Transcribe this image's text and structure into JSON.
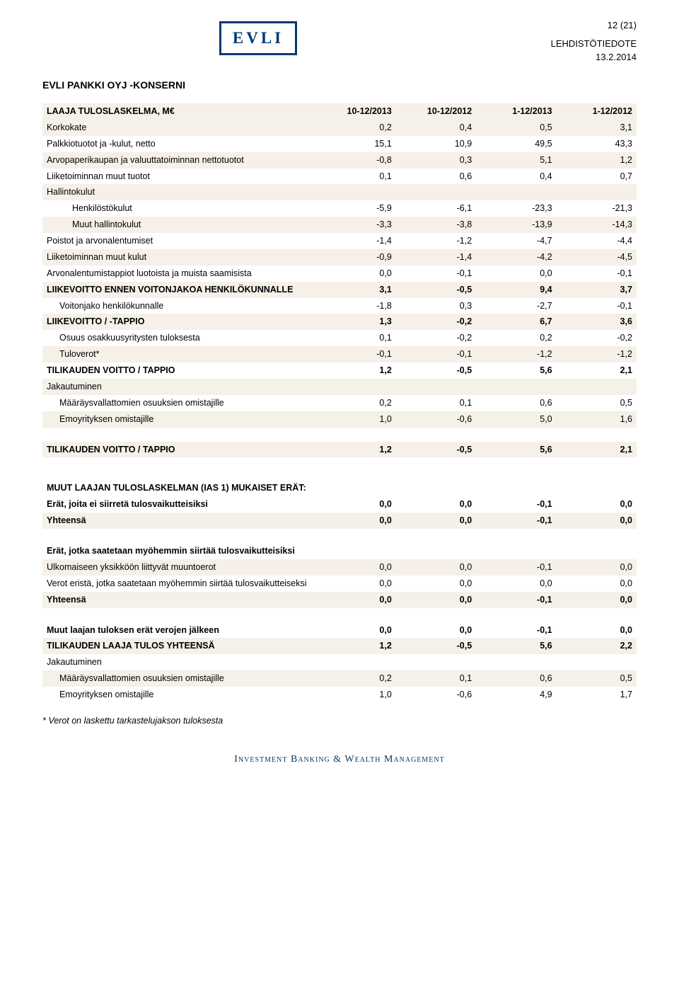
{
  "page_number": "12 (21)",
  "logo": "EVLI",
  "header": "LEHDISTÖTIEDOTE",
  "date": "13.2.2014",
  "group_title": "EVLI PANKKI OYJ -KONSERNI",
  "columns": [
    "LAAJA TULOSLASKELMA, M€",
    "10-12/2013",
    "10-12/2012",
    "1-12/2013",
    "1-12/2012"
  ],
  "main_rows": [
    {
      "label": "Korkokate",
      "v": [
        "0,2",
        "0,4",
        "0,5",
        "3,1"
      ],
      "band": true
    },
    {
      "label": "Palkkiotuotot ja -kulut, netto",
      "v": [
        "15,1",
        "10,9",
        "49,5",
        "43,3"
      ]
    },
    {
      "label": "Arvopaperikaupan ja valuuttatoiminnan nettotuotot",
      "v": [
        "-0,8",
        "0,3",
        "5,1",
        "1,2"
      ],
      "band": true
    },
    {
      "label": "Liiketoiminnan muut tuotot",
      "v": [
        "0,1",
        "0,6",
        "0,4",
        "0,7"
      ]
    },
    {
      "label": "Hallintokulut",
      "v": [
        "",
        "",
        "",
        ""
      ],
      "band": true
    },
    {
      "label": "Henkilöstökulut",
      "v": [
        "-5,9",
        "-6,1",
        "-23,3",
        "-21,3"
      ],
      "indent": 2
    },
    {
      "label": "Muut hallintokulut",
      "v": [
        "-3,3",
        "-3,8",
        "-13,9",
        "-14,3"
      ],
      "indent": 2,
      "band": true
    },
    {
      "label": "Poistot ja arvonalentumiset",
      "v": [
        "-1,4",
        "-1,2",
        "-4,7",
        "-4,4"
      ]
    },
    {
      "label": "Liiketoiminnan muut kulut",
      "v": [
        "-0,9",
        "-1,4",
        "-4,2",
        "-4,5"
      ],
      "band": true
    },
    {
      "label": "Arvonalentumistappiot luotoista ja muista saamisista",
      "v": [
        "0,0",
        "-0,1",
        "0,0",
        "-0,1"
      ]
    },
    {
      "label": "LIIKEVOITTO ENNEN VOITONJAKOA HENKILÖKUNNALLE",
      "v": [
        "3,1",
        "-0,5",
        "9,4",
        "3,7"
      ],
      "bold": true,
      "band": true
    },
    {
      "label": "Voitonjako henkilökunnalle",
      "v": [
        "-1,8",
        "0,3",
        "-2,7",
        "-0,1"
      ],
      "indent": 1
    },
    {
      "label": "LIIKEVOITTO / -TAPPIO",
      "v": [
        "1,3",
        "-0,2",
        "6,7",
        "3,6"
      ],
      "bold": true,
      "band": true
    },
    {
      "label": "Osuus osakkuusyritysten tuloksesta",
      "v": [
        "0,1",
        "-0,2",
        "0,2",
        "-0,2"
      ],
      "indent": 1
    },
    {
      "label": "Tuloverot*",
      "v": [
        "-0,1",
        "-0,1",
        "-1,2",
        "-1,2"
      ],
      "indent": 1,
      "band": true
    },
    {
      "label": "TILIKAUDEN VOITTO / TAPPIO",
      "v": [
        "1,2",
        "-0,5",
        "5,6",
        "2,1"
      ],
      "bold": true
    },
    {
      "label": "Jakautuminen",
      "v": [
        "",
        "",
        "",
        ""
      ],
      "band": true
    },
    {
      "label": "Määräysvallattomien osuuksien omistajille",
      "v": [
        "0,2",
        "0,1",
        "0,6",
        "0,5"
      ],
      "indent": 1
    },
    {
      "label": "Emoyrityksen omistajille",
      "v": [
        "1,0",
        "-0,6",
        "5,0",
        "1,6"
      ],
      "indent": 1,
      "band": true
    }
  ],
  "summary_row": {
    "label": "TILIKAUDEN VOITTO / TAPPIO",
    "v": [
      "1,2",
      "-0,5",
      "5,6",
      "2,1"
    ],
    "bold": true,
    "band": true
  },
  "oci_title": "MUUT LAAJAN TULOSLASKELMAN (IAS 1) MUKAISET ERÄT:",
  "oci_block1": [
    {
      "label": "Erät, joita ei siirretä tulosvaikutteisiksi",
      "v": [
        "0,0",
        "0,0",
        "-0,1",
        "0,0"
      ],
      "bold": true
    },
    {
      "label": "Yhteensä",
      "v": [
        "0,0",
        "0,0",
        "-0,1",
        "0,0"
      ],
      "bold": true,
      "band": true
    }
  ],
  "oci_block2_title": "Erät, jotka saatetaan myöhemmin siirtää tulosvaikutteisiksi",
  "oci_block2": [
    {
      "label": "Ulkomaiseen yksikköön liittyvät muuntoerot",
      "v": [
        "0,0",
        "0,0",
        "-0,1",
        "0,0"
      ],
      "band": true
    },
    {
      "label": "Verot eristä, jotka saatetaan myöhemmin siirtää tulosvaikutteiseksi",
      "v": [
        "0,0",
        "0,0",
        "0,0",
        "0,0"
      ]
    },
    {
      "label": "Yhteensä",
      "v": [
        "0,0",
        "0,0",
        "-0,1",
        "0,0"
      ],
      "bold": true,
      "band": true
    }
  ],
  "oci_block3": [
    {
      "label": "Muut laajan tuloksen erät verojen jälkeen",
      "v": [
        "0,0",
        "0,0",
        "-0,1",
        "0,0"
      ],
      "bold": true
    },
    {
      "label": "TILIKAUDEN LAAJA TULOS YHTEENSÄ",
      "v": [
        "1,2",
        "-0,5",
        "5,6",
        "2,2"
      ],
      "bold": true,
      "band": true
    },
    {
      "label": "Jakautuminen",
      "v": [
        "",
        "",
        "",
        ""
      ]
    },
    {
      "label": "Määräysvallattomien osuuksien omistajille",
      "v": [
        "0,2",
        "0,1",
        "0,6",
        "0,5"
      ],
      "indent": 1,
      "band": true
    },
    {
      "label": "Emoyrityksen omistajille",
      "v": [
        "1,0",
        "-0,6",
        "4,9",
        "1,7"
      ],
      "indent": 1
    }
  ],
  "footnote": "* Verot on laskettu tarkastelujakson tuloksesta",
  "footer": "Investment Banking & Wealth Management",
  "colors": {
    "brand": "#003a70",
    "band": "#f5f0e8",
    "text": "#000000",
    "background": "#ffffff"
  }
}
